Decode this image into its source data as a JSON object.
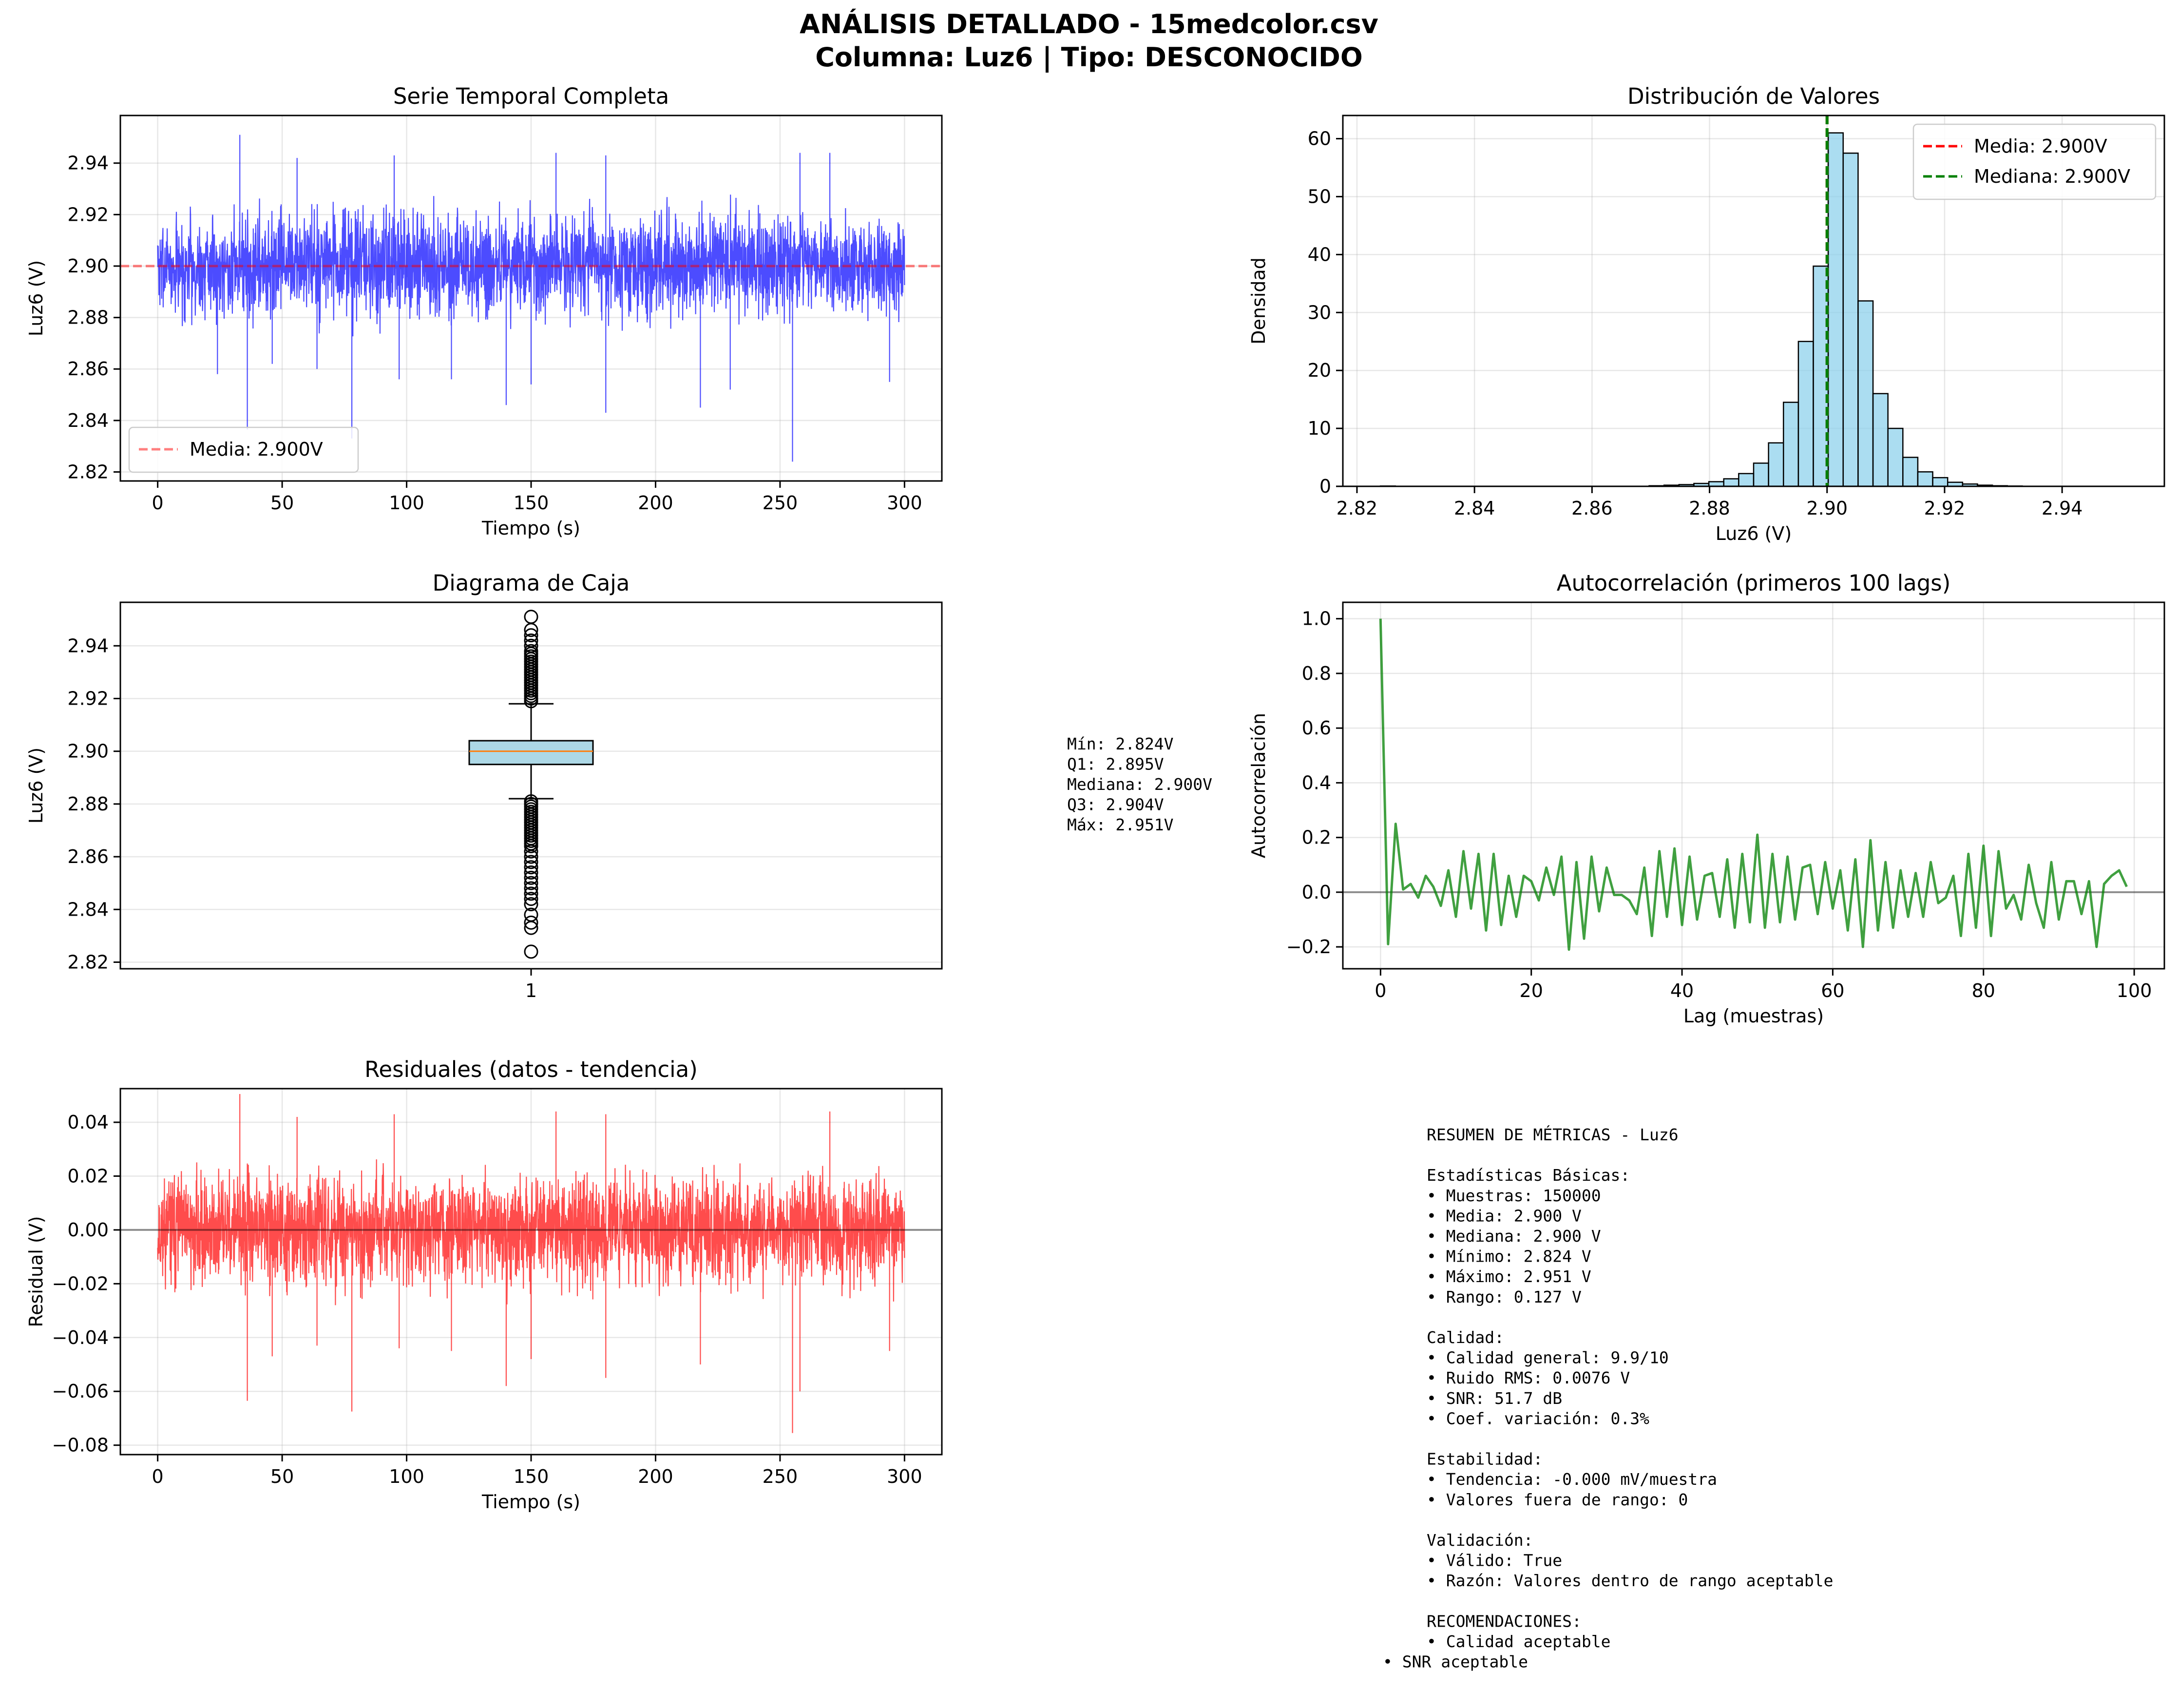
{
  "figure": {
    "title_line1": "ANÁLISIS DETALLADO - 15medcolor.csv",
    "title_line2": "Columna: Luz6 | Tipo: DESCONOCIDO"
  },
  "chart_data": [
    {
      "id": "timeseries",
      "type": "line",
      "title": "Serie Temporal Completa",
      "xlabel": "Tiempo (s)",
      "ylabel": "Luz6 (V)",
      "xlim": [
        -15,
        315
      ],
      "ylim": [
        2.8165,
        2.9585
      ],
      "xticks": [
        0,
        50,
        100,
        150,
        200,
        250,
        300
      ],
      "xtick_labels": [
        "0",
        "50",
        "100",
        "150",
        "200",
        "250",
        "300"
      ],
      "yticks": [
        2.82,
        2.84,
        2.86,
        2.88,
        2.9,
        2.92,
        2.94
      ],
      "ytick_labels": [
        "2.82",
        "2.84",
        "2.86",
        "2.88",
        "2.90",
        "2.92",
        "2.94"
      ],
      "grid": true,
      "series": [
        {
          "color": "#0000ff",
          "x_range": [
            0,
            300
          ],
          "samples": 150000,
          "mean": 2.9,
          "min": 2.824,
          "max": 2.951,
          "std": 0.0076
        }
      ],
      "reference_line": {
        "y": 2.9,
        "color": "#ff0000",
        "style": "dashed",
        "label": "Media: 2.900V"
      },
      "legend": {
        "position": "lower-left",
        "entries": [
          "Media: 2.900V"
        ]
      }
    },
    {
      "id": "histogram",
      "type": "bar",
      "title": "Distribución de Valores",
      "xlabel": "Luz6 (V)",
      "ylabel": "Densidad",
      "xlim": [
        2.8176,
        2.9574
      ],
      "ylim": [
        0,
        64
      ],
      "xticks": [
        2.82,
        2.84,
        2.86,
        2.88,
        2.9,
        2.92,
        2.94
      ],
      "xtick_labels": [
        "2.82",
        "2.84",
        "2.86",
        "2.88",
        "2.90",
        "2.92",
        "2.94"
      ],
      "yticks": [
        0,
        10,
        20,
        30,
        40,
        50,
        60
      ],
      "ytick_labels": [
        "0",
        "10",
        "20",
        "30",
        "40",
        "50",
        "60"
      ],
      "grid": true,
      "bin_start": 2.824,
      "bin_width": 0.00254,
      "bin_values": [
        0.05,
        0,
        0,
        0,
        0,
        0,
        0,
        0,
        0,
        0,
        0,
        0,
        0,
        0,
        0,
        0,
        0,
        0,
        0.1,
        0.2,
        0.3,
        0.5,
        0.8,
        1.3,
        2.2,
        4.0,
        7.5,
        14.5,
        25.0,
        38.0,
        61.0,
        57.5,
        32.0,
        16.0,
        10.0,
        5.0,
        2.5,
        1.5,
        0.7,
        0.4,
        0.2,
        0.1,
        0.05,
        0.02,
        0.01,
        0.01,
        0.005,
        0,
        0,
        0.005
      ],
      "bar_color": "#87ceeb",
      "vlines": [
        {
          "x": 2.9,
          "color": "#ff0000",
          "style": "dashed",
          "label": "Media: 2.900V"
        },
        {
          "x": 2.9,
          "color": "#008000",
          "style": "dashed",
          "label": "Mediana: 2.900V"
        }
      ],
      "legend": {
        "position": "top-right",
        "entries": [
          "Media: 2.900V",
          "Mediana: 2.900V"
        ]
      }
    },
    {
      "id": "boxplot",
      "type": "box",
      "title": "Diagrama de Caja",
      "ylabel": "Luz6 (V)",
      "ylim": [
        2.8175,
        2.9565
      ],
      "yticks": [
        2.82,
        2.84,
        2.86,
        2.88,
        2.9,
        2.92,
        2.94
      ],
      "ytick_labels": [
        "2.82",
        "2.84",
        "2.86",
        "2.88",
        "2.90",
        "2.92",
        "2.94"
      ],
      "categories": [
        "1"
      ],
      "grid": true,
      "box": {
        "min": 2.824,
        "q1": 2.895,
        "median": 2.9,
        "q3": 2.904,
        "max": 2.951,
        "whisker_low": 2.882,
        "whisker_high": 2.918
      },
      "outliers_high": [
        2.919,
        2.92,
        2.921,
        2.922,
        2.923,
        2.924,
        2.925,
        2.926,
        2.927,
        2.928,
        2.929,
        2.93,
        2.931,
        2.932,
        2.933,
        2.934,
        2.935,
        2.936,
        2.937,
        2.938,
        2.94,
        2.942,
        2.944,
        2.946,
        2.951
      ],
      "outliers_low": [
        2.881,
        2.88,
        2.879,
        2.878,
        2.877,
        2.876,
        2.875,
        2.874,
        2.873,
        2.872,
        2.871,
        2.87,
        2.869,
        2.868,
        2.867,
        2.866,
        2.865,
        2.864,
        2.862,
        2.86,
        2.858,
        2.856,
        2.854,
        2.852,
        2.85,
        2.848,
        2.846,
        2.844,
        2.842,
        2.838,
        2.835,
        2.833,
        2.824
      ]
    },
    {
      "id": "autocorr",
      "type": "line",
      "title": "Autocorrelación (primeros 100 lags)",
      "xlabel": "Lag (muestras)",
      "ylabel": "Autocorrelación",
      "xlim": [
        -5,
        104
      ],
      "ylim": [
        -0.28,
        1.06
      ],
      "xticks": [
        0,
        20,
        40,
        60,
        80,
        100
      ],
      "xtick_labels": [
        "0",
        "20",
        "40",
        "60",
        "80",
        "100"
      ],
      "yticks": [
        -0.2,
        0.0,
        0.2,
        0.4,
        0.6,
        0.8,
        1.0
      ],
      "ytick_labels": [
        "−0.2",
        "0.0",
        "0.2",
        "0.4",
        "0.6",
        "0.8",
        "1.0"
      ],
      "grid": true,
      "series": [
        {
          "color": "#008000",
          "values": [
            1.0,
            -0.19,
            0.25,
            0.01,
            0.03,
            -0.02,
            0.06,
            0.02,
            -0.05,
            0.08,
            -0.09,
            0.15,
            -0.06,
            0.14,
            -0.14,
            0.14,
            -0.12,
            0.06,
            -0.09,
            0.06,
            0.04,
            -0.03,
            0.09,
            -0.01,
            0.13,
            -0.21,
            0.11,
            -0.17,
            0.13,
            -0.07,
            0.09,
            -0.01,
            -0.01,
            -0.03,
            -0.08,
            0.09,
            -0.16,
            0.15,
            -0.09,
            0.16,
            -0.12,
            0.13,
            -0.1,
            0.06,
            0.07,
            -0.09,
            0.12,
            -0.13,
            0.14,
            -0.11,
            0.21,
            -0.13,
            0.14,
            -0.11,
            0.13,
            -0.1,
            0.09,
            0.1,
            -0.08,
            0.11,
            -0.06,
            0.08,
            -0.14,
            0.12,
            -0.2,
            0.19,
            -0.14,
            0.11,
            -0.13,
            0.08,
            -0.09,
            0.07,
            -0.09,
            0.11,
            -0.04,
            -0.02,
            0.06,
            -0.16,
            0.14,
            -0.13,
            0.17,
            -0.16,
            0.15,
            -0.06,
            -0.01,
            -0.1,
            0.1,
            -0.04,
            -0.13,
            0.11,
            -0.1,
            0.04,
            0.04,
            -0.08,
            0.04,
            -0.2,
            0.03,
            0.06,
            0.08,
            0.02
          ]
        }
      ],
      "reference_line": {
        "y": 0.0,
        "color": "#000000"
      }
    },
    {
      "id": "residuals",
      "type": "line",
      "title": "Residuales (datos - tendencia)",
      "xlabel": "Tiempo (s)",
      "ylabel": "Residual (V)",
      "xlim": [
        -15,
        315
      ],
      "ylim": [
        -0.0835,
        0.0525
      ],
      "xticks": [
        0,
        50,
        100,
        150,
        200,
        250,
        300
      ],
      "xtick_labels": [
        "0",
        "50",
        "100",
        "150",
        "200",
        "250",
        "300"
      ],
      "yticks": [
        -0.08,
        -0.06,
        -0.04,
        -0.02,
        0.0,
        0.02,
        0.04
      ],
      "ytick_labels": [
        "−0.08",
        "−0.06",
        "−0.04",
        "−0.02",
        "0.00",
        "0.02",
        "0.04"
      ],
      "grid": true,
      "series": [
        {
          "color": "#ff0000",
          "x_range": [
            0,
            300
          ],
          "samples": 150000,
          "mean": 0.0,
          "min": -0.076,
          "max": 0.051
        }
      ],
      "reference_line": {
        "y": 0.0,
        "color": "#000000"
      }
    }
  ],
  "box_stats_text": [
    "Mín: 2.824V",
    "Q1: 2.895V",
    "Mediana: 2.900V",
    "Q3: 2.904V",
    "Máx: 2.951V"
  ],
  "summary_text": [
    "RESUMEN DE MÉTRICAS - Luz6",
    "",
    "Estadísticas Básicas:",
    "• Muestras: 150000",
    "• Media: 2.900 V",
    "• Mediana: 2.900 V",
    "• Mínimo: 2.824 V",
    "• Máximo: 2.951 V",
    "• Rango: 0.127 V",
    "",
    "Calidad:",
    "• Calidad general: 9.9/10",
    "• Ruido RMS: 0.0076 V",
    "• SNR: 51.7 dB",
    "• Coef. variación: 0.3%",
    "",
    "Estabilidad:",
    "• Tendencia: -0.000 mV/muestra",
    "• Valores fuera de rango: 0",
    "",
    "Validación:",
    "• Válido: True",
    "• Razón: Valores dentro de rango aceptable",
    "",
    "RECOMENDACIONES:",
    "• Calidad aceptable",
    "• SNR aceptable"
  ],
  "colors": {
    "timeseries": "#0000ff",
    "residuals": "#ff0000",
    "autocorr": "#008000",
    "hist": "#87ceeb",
    "box": "#add8e6",
    "median_line": "#ff7f0e"
  }
}
